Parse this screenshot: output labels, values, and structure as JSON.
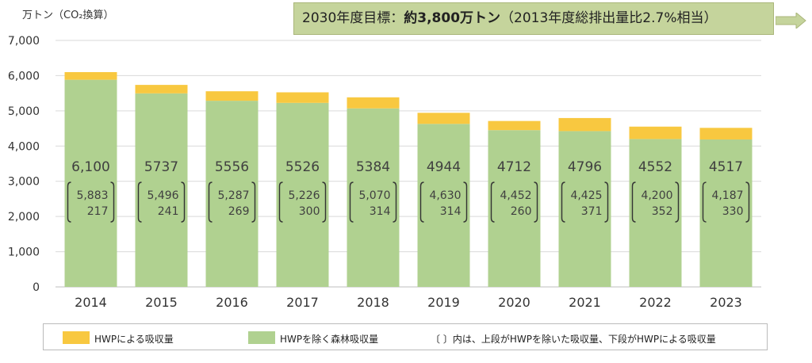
{
  "unit_label": "万トン（CO₂換算）",
  "goal": {
    "prefix": "2030年度目標：",
    "bold": "約3,800万トン",
    "suffix": "（2013年度総排出量比2.7%相当）"
  },
  "colors": {
    "hwp": "#f8c840",
    "forest": "#b0d190",
    "grid": "#d9d9d9",
    "goal_bg": "#c5d49c"
  },
  "legend": {
    "hwp": "HWPによる吸収量",
    "forest": "HWPを除く森林吸収量",
    "note": "〔 〕内は、上段がHWPを除いた吸収量、下段がHWPによる吸収量"
  },
  "chart_data": {
    "type": "bar",
    "stacked": true,
    "ylim": [
      0,
      7000
    ],
    "yticks": [
      "0",
      "1,000",
      "2,000",
      "3,000",
      "4,000",
      "5,000",
      "6,000",
      "7,000"
    ],
    "grid": true,
    "categories": [
      "2014",
      "2015",
      "2016",
      "2017",
      "2018",
      "2019",
      "2020",
      "2021",
      "2022",
      "2023"
    ],
    "series": [
      {
        "name": "HWPを除く森林吸収量",
        "values": [
          5883,
          5496,
          5287,
          5226,
          5070,
          4630,
          4452,
          4425,
          4200,
          4187
        ],
        "labels": [
          "5,883",
          "5,496",
          "5,287",
          "5,226",
          "5,070",
          "4,630",
          "4,452",
          "4,425",
          "4,200",
          "4,187"
        ]
      },
      {
        "name": "HWPによる吸収量",
        "values": [
          217,
          241,
          269,
          300,
          314,
          314,
          260,
          371,
          352,
          330
        ],
        "labels": [
          "217",
          "241",
          "269",
          "300",
          "314",
          "314",
          "260",
          "371",
          "352",
          "330"
        ]
      }
    ],
    "totals": [
      "6,100",
      "5737",
      "5556",
      "5526",
      "5384",
      "4944",
      "4712",
      "4796",
      "4552",
      "4517"
    ]
  }
}
